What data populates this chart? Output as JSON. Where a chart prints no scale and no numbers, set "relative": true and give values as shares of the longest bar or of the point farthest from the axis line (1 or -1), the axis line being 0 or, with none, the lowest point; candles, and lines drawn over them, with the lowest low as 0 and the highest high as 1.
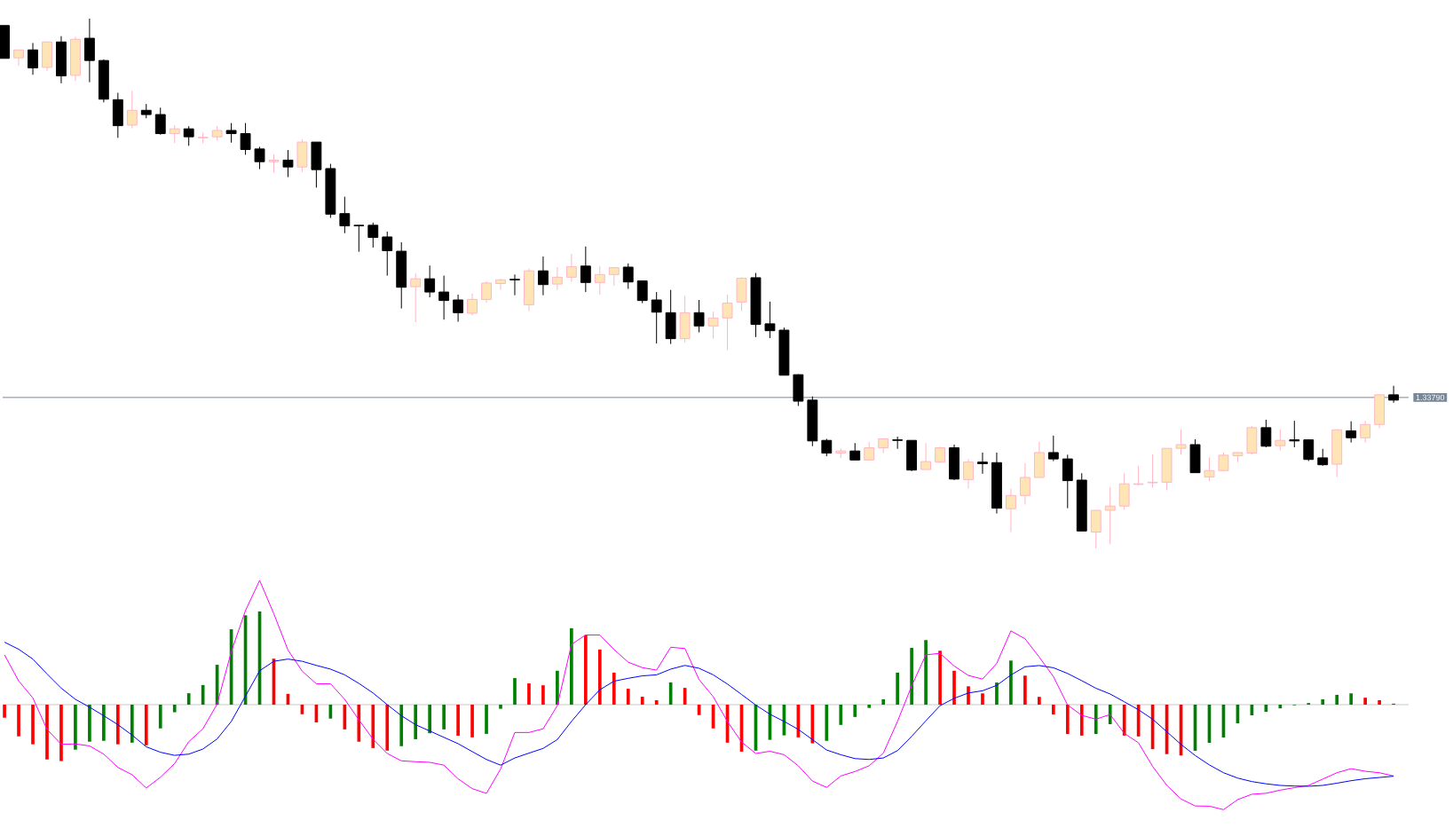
{
  "chart_data": [
    {
      "type": "candlestick",
      "relative": true,
      "categories": [
        null,
        null,
        null,
        null,
        null,
        null,
        null,
        null,
        null,
        null,
        null,
        null,
        null,
        null,
        null,
        null,
        null,
        null,
        null,
        null,
        null,
        null,
        null,
        null,
        null,
        null,
        null,
        null,
        null,
        null,
        null,
        null,
        null,
        null,
        null,
        null,
        null,
        null,
        null,
        null,
        null,
        null,
        null,
        null,
        null,
        null,
        null,
        null,
        null,
        null,
        null,
        null,
        null,
        null,
        null,
        null,
        null,
        null,
        null,
        null,
        null,
        null,
        null,
        null,
        null,
        null,
        null,
        null,
        null,
        null,
        null,
        null,
        null,
        null,
        null,
        null,
        null,
        null,
        null,
        null,
        null,
        null,
        null,
        null,
        null,
        null,
        null,
        null,
        null,
        null,
        null,
        null,
        null,
        null,
        null,
        null,
        null,
        null,
        null
      ],
      "ohlc": [
        [
          0.987,
          0.987,
          0.925,
          0.925
        ],
        [
          0.926,
          0.942,
          0.911,
          0.941
        ],
        [
          0.941,
          0.954,
          0.894,
          0.907
        ],
        [
          0.908,
          0.957,
          0.901,
          0.956
        ],
        [
          0.956,
          0.967,
          0.878,
          0.892
        ],
        [
          0.893,
          0.966,
          0.882,
          0.961
        ],
        [
          0.963,
          1.0,
          0.88,
          0.921
        ],
        [
          0.921,
          0.923,
          0.842,
          0.848
        ],
        [
          0.847,
          0.86,
          0.775,
          0.798
        ],
        [
          0.799,
          0.864,
          0.793,
          0.827
        ],
        [
          0.827,
          0.839,
          0.812,
          0.819
        ],
        [
          0.819,
          0.832,
          0.781,
          0.783
        ],
        [
          0.783,
          0.799,
          0.765,
          0.792
        ],
        [
          0.792,
          0.797,
          0.76,
          0.777
        ],
        [
          0.775,
          0.785,
          0.765,
          0.776
        ],
        [
          0.777,
          0.797,
          0.77,
          0.789
        ],
        [
          0.789,
          0.803,
          0.766,
          0.783
        ],
        [
          0.783,
          0.803,
          0.743,
          0.753
        ],
        [
          0.754,
          0.758,
          0.716,
          0.73
        ],
        [
          0.73,
          0.744,
          0.709,
          0.733
        ],
        [
          0.733,
          0.752,
          0.701,
          0.72
        ],
        [
          0.72,
          0.772,
          0.711,
          0.767
        ],
        [
          0.767,
          0.767,
          0.681,
          0.715
        ],
        [
          0.717,
          0.726,
          0.624,
          0.631
        ],
        [
          0.632,
          0.664,
          0.595,
          0.609
        ],
        [
          0.61,
          0.61,
          0.56,
          0.609
        ],
        [
          0.61,
          0.615,
          0.568,
          0.587
        ],
        [
          0.588,
          0.598,
          0.515,
          0.562
        ],
        [
          0.561,
          0.578,
          0.453,
          0.493
        ],
        [
          0.494,
          0.519,
          0.427,
          0.509
        ],
        [
          0.509,
          0.534,
          0.474,
          0.484
        ],
        [
          0.484,
          0.515,
          0.432,
          0.468
        ],
        [
          0.469,
          0.479,
          0.428,
          0.445
        ],
        [
          0.444,
          0.481,
          0.44,
          0.47
        ],
        [
          0.47,
          0.504,
          0.464,
          0.501
        ],
        [
          0.5,
          0.509,
          0.488,
          0.507
        ],
        [
          0.508,
          0.517,
          0.478,
          0.507
        ],
        [
          0.46,
          0.528,
          0.448,
          0.524
        ],
        [
          0.524,
          0.551,
          0.478,
          0.498
        ],
        [
          0.499,
          0.531,
          0.488,
          0.512
        ],
        [
          0.512,
          0.556,
          0.503,
          0.532
        ],
        [
          0.533,
          0.57,
          0.484,
          0.502
        ],
        [
          0.502,
          0.533,
          0.479,
          0.517
        ],
        [
          0.517,
          0.53,
          0.496,
          0.53
        ],
        [
          0.531,
          0.538,
          0.49,
          0.503
        ],
        [
          0.505,
          0.506,
          0.463,
          0.468
        ],
        [
          0.469,
          0.484,
          0.387,
          0.446
        ],
        [
          0.445,
          0.488,
          0.386,
          0.396
        ],
        [
          0.396,
          0.477,
          0.389,
          0.445
        ],
        [
          0.445,
          0.469,
          0.408,
          0.42
        ],
        [
          0.42,
          0.447,
          0.396,
          0.435
        ],
        [
          0.435,
          0.479,
          0.374,
          0.463
        ],
        [
          0.465,
          0.512,
          0.448,
          0.51
        ],
        [
          0.511,
          0.52,
          0.399,
          0.423
        ],
        [
          0.424,
          0.466,
          0.397,
          0.411
        ],
        [
          0.412,
          0.417,
          0.327,
          0.327
        ],
        [
          0.328,
          0.329,
          0.269,
          0.278
        ],
        [
          0.28,
          0.287,
          0.193,
          0.203
        ],
        [
          0.204,
          0.207,
          0.174,
          0.18
        ],
        [
          0.18,
          0.189,
          0.171,
          0.184
        ],
        [
          0.184,
          0.199,
          0.167,
          0.167
        ],
        [
          0.167,
          0.201,
          0.167,
          0.19
        ],
        [
          0.19,
          0.207,
          0.18,
          0.207
        ],
        [
          0.205,
          0.211,
          0.188,
          0.204
        ],
        [
          0.204,
          0.204,
          0.146,
          0.148
        ],
        [
          0.149,
          0.199,
          0.149,
          0.164
        ],
        [
          0.163,
          0.192,
          0.161,
          0.19
        ],
        [
          0.19,
          0.196,
          0.129,
          0.131
        ],
        [
          0.13,
          0.169,
          0.113,
          0.163
        ],
        [
          0.163,
          0.181,
          0.141,
          0.16
        ],
        [
          0.162,
          0.181,
          0.066,
          0.076
        ],
        [
          0.075,
          0.113,
          0.031,
          0.1
        ],
        [
          0.1,
          0.161,
          0.083,
          0.134
        ],
        [
          0.134,
          0.201,
          0.134,
          0.181
        ],
        [
          0.181,
          0.213,
          0.165,
          0.169
        ],
        [
          0.169,
          0.177,
          0.076,
          0.128
        ],
        [
          0.129,
          0.142,
          0.033,
          0.033
        ],
        [
          0.031,
          0.072,
          0,
          0.072
        ],
        [
          0.072,
          0.116,
          0.008,
          0.08
        ],
        [
          0.08,
          0.142,
          0.073,
          0.122
        ],
        [
          0.121,
          0.156,
          0.119,
          0.122
        ],
        [
          0.124,
          0.178,
          0.115,
          0.125
        ],
        [
          0.125,
          0.189,
          0.11,
          0.189
        ],
        [
          0.189,
          0.225,
          0.177,
          0.196
        ],
        [
          0.196,
          0.206,
          0.143,
          0.143
        ],
        [
          0.135,
          0.172,
          0.127,
          0.147
        ],
        [
          0.147,
          0.181,
          0.147,
          0.176
        ],
        [
          0.175,
          0.181,
          0.163,
          0.181
        ],
        [
          0.18,
          0.231,
          0.177,
          0.228
        ],
        [
          0.228,
          0.243,
          0.191,
          0.193
        ],
        [
          0.194,
          0.225,
          0.185,
          0.204
        ],
        [
          0.205,
          0.241,
          0.191,
          0.203
        ],
        [
          0.205,
          0.206,
          0.165,
          0.168
        ],
        [
          0.171,
          0.188,
          0.156,
          0.158
        ],
        [
          0.159,
          0.225,
          0.135,
          0.224
        ],
        [
          0.222,
          0.24,
          0.2,
          0.209
        ],
        [
          0.209,
          0.241,
          0.2,
          0.234
        ],
        [
          0.234,
          0.291,
          0.227,
          0.29
        ],
        [
          0.29,
          0.307,
          0.275,
          0.28
        ]
      ],
      "colors": [
        "#000000",
        "#ffe4b5",
        "#000000",
        "#ffe4b5",
        "#000000",
        "#ffe4b5",
        "#000000",
        "#000000",
        "#000000",
        "#ffe4b5",
        "#000000",
        "#000000",
        "#ffe4b5",
        "#000000",
        "#ffe4b5",
        "#ffe4b5",
        "#000000",
        "#000000",
        "#000000",
        "#ffe4b5",
        "#000000",
        "#ffe4b5",
        "#000000",
        "#000000",
        "#000000",
        "#000000",
        "#000000",
        "#000000",
        "#000000",
        "#ffe4b5",
        "#000000",
        "#000000",
        "#000000",
        "#ffe4b5",
        "#ffe4b5",
        "#ffe4b5",
        "#000000",
        "#ffe4b5",
        "#000000",
        "#ffe4b5",
        "#ffe4b5",
        "#000000",
        "#ffe4b5",
        "#ffe4b5",
        "#000000",
        "#000000",
        "#000000",
        "#000000",
        "#ffe4b5",
        "#000000",
        "#ffe4b5",
        "#ffe4b5",
        "#ffe4b5",
        "#000000",
        "#000000",
        "#000000",
        "#000000",
        "#000000",
        "#000000",
        "#ffe4b5",
        "#000000",
        "#ffe4b5",
        "#ffe4b5",
        "#000000",
        "#000000",
        "#ffe4b5",
        "#ffe4b5",
        "#000000",
        "#ffe4b5",
        "#000000",
        "#000000",
        "#ffe4b5",
        "#ffe4b5",
        "#ffe4b5",
        "#000000",
        "#000000",
        "#000000",
        "#ffe4b5",
        "#ffe4b5",
        "#ffe4b5",
        "#ffe4b5",
        "#ffe4b5",
        "#ffe4b5",
        "#ffe4b5",
        "#000000",
        "#ffe4b5",
        "#ffe4b5",
        "#ffe4b5",
        "#ffe4b5",
        "#000000",
        "#ffe4b5",
        "#000000",
        "#000000",
        "#000000",
        "#ffe4b5",
        "#000000",
        "#ffe4b5",
        "#ffe4b5",
        "#000000"
      ],
      "ref_lines": [
        {
          "axis": "y",
          "value": 0.285,
          "color": "#778899"
        }
      ],
      "annotations": [
        "1.33790"
      ]
    },
    {
      "type": "bar",
      "relative": true,
      "categories": [
        null,
        null,
        null,
        null,
        null,
        null,
        null,
        null,
        null,
        null,
        null,
        null,
        null,
        null,
        null,
        null,
        null,
        null,
        null,
        null,
        null,
        null,
        null,
        null,
        null,
        null,
        null,
        null,
        null,
        null,
        null,
        null,
        null,
        null,
        null,
        null,
        null,
        null,
        null,
        null,
        null,
        null,
        null,
        null,
        null,
        null,
        null,
        null,
        null,
        null,
        null,
        null,
        null,
        null,
        null,
        null,
        null,
        null,
        null,
        null,
        null,
        null,
        null,
        null,
        null,
        null,
        null,
        null,
        null,
        null,
        null,
        null,
        null,
        null,
        null,
        null,
        null,
        null,
        null,
        null,
        null,
        null,
        null,
        null,
        null,
        null,
        null,
        null,
        null,
        null,
        null,
        null,
        null,
        null,
        null,
        null,
        null,
        null,
        null
      ],
      "series": [
        {
          "values": [
            -0.105,
            -0.255,
            -0.319,
            -0.441,
            -0.454,
            -0.362,
            -0.298,
            -0.291,
            -0.319,
            -0.306,
            -0.327,
            -0.191,
            -0.061,
            0.092,
            0.158,
            0.321,
            0.607,
            0.719,
            0.75,
            0.37,
            0.087,
            -0.077,
            -0.143,
            -0.112,
            -0.199,
            -0.298,
            -0.349,
            -0.37,
            -0.334,
            -0.278,
            -0.23,
            -0.199,
            -0.25,
            -0.263,
            -0.235,
            -0.033,
            0.214,
            0.171,
            0.156,
            0.273,
            0.615,
            0.559,
            0.444,
            0.258,
            0.128,
            0.064,
            0.036,
            0.179,
            0.135,
            -0.084,
            -0.191,
            -0.306,
            -0.378,
            -0.37,
            -0.283,
            -0.247,
            -0.263,
            -0.311,
            -0.291,
            -0.163,
            -0.099,
            -0.026,
            0.043,
            0.258,
            0.457,
            0.52,
            0.434,
            0.273,
            0.148,
            0.091,
            0.178,
            0.355,
            0.234,
            0.063,
            -0.079,
            -0.236,
            -0.249,
            -0.236,
            -0.157,
            -0.249,
            -0.256,
            -0.358,
            -0.398,
            -0.409,
            -0.371,
            -0.307,
            -0.264,
            -0.15,
            -0.086,
            -0.058,
            -0.03,
            -0.005,
            0.013,
            0.043,
            0.079,
            0.091,
            0.056,
            0.036,
            0.008
          ],
          "colors": [
            "#ff0000",
            "#ff0000",
            "#ff0000",
            "#ff0000",
            "#ff0000",
            "#008000",
            "#008000",
            "#008000",
            "#ff0000",
            "#008000",
            "#ff0000",
            "#008000",
            "#008000",
            "#008000",
            "#008000",
            "#008000",
            "#008000",
            "#008000",
            "#008000",
            "#ff0000",
            "#ff0000",
            "#ff0000",
            "#ff0000",
            "#008000",
            "#ff0000",
            "#ff0000",
            "#ff0000",
            "#ff0000",
            "#008000",
            "#008000",
            "#008000",
            "#008000",
            "#ff0000",
            "#ff0000",
            "#008000",
            "#008000",
            "#008000",
            "#ff0000",
            "#ff0000",
            "#008000",
            "#008000",
            "#ff0000",
            "#ff0000",
            "#ff0000",
            "#ff0000",
            "#ff0000",
            "#ff0000",
            "#008000",
            "#ff0000",
            "#ff0000",
            "#ff0000",
            "#ff0000",
            "#ff0000",
            "#008000",
            "#008000",
            "#008000",
            "#ff0000",
            "#ff0000",
            "#008000",
            "#008000",
            "#008000",
            "#008000",
            "#008000",
            "#008000",
            "#008000",
            "#008000",
            "#ff0000",
            "#ff0000",
            "#ff0000",
            "#ff0000",
            "#008000",
            "#008000",
            "#ff0000",
            "#ff0000",
            "#ff0000",
            "#ff0000",
            "#ff0000",
            "#008000",
            "#008000",
            "#ff0000",
            "#ff0000",
            "#ff0000",
            "#ff0000",
            "#ff0000",
            "#008000",
            "#008000",
            "#008000",
            "#008000",
            "#008000",
            "#008000",
            "#008000",
            "#008000",
            "#008000",
            "#008000",
            "#008000",
            "#008000",
            "#ff0000",
            "#ff0000",
            "#ff0000"
          ]
        },
        {
          "type": "line",
          "color": "#ff00ff",
          "values": [
            0.401,
            0.191,
            0.054,
            -0.199,
            -0.319,
            -0.316,
            -0.332,
            -0.398,
            -0.505,
            -0.564,
            -0.671,
            -0.584,
            -0.474,
            -0.298,
            -0.194,
            0.005,
            0.426,
            0.758,
            1.0,
            0.732,
            0.439,
            0.27,
            0.168,
            0.168,
            0.043,
            -0.122,
            -0.278,
            -0.393,
            -0.452,
            -0.459,
            -0.464,
            -0.487,
            -0.597,
            -0.676,
            -0.714,
            -0.518,
            -0.224,
            -0.224,
            -0.194,
            -0.008,
            0.485,
            0.561,
            0.561,
            0.444,
            0.342,
            0.298,
            0.278,
            0.462,
            0.452,
            0.202,
            0.064,
            -0.135,
            -0.301,
            -0.393,
            -0.375,
            -0.403,
            -0.492,
            -0.615,
            -0.666,
            -0.574,
            -0.538,
            -0.492,
            -0.39,
            -0.135,
            0.151,
            0.401,
            0.413,
            0.311,
            0.235,
            0.206,
            0.332,
            0.594,
            0.53,
            0.383,
            0.226,
            -0.003,
            -0.086,
            -0.117,
            -0.079,
            -0.231,
            -0.307,
            -0.497,
            -0.65,
            -0.759,
            -0.815,
            -0.817,
            -0.845,
            -0.764,
            -0.721,
            -0.713,
            -0.688,
            -0.668,
            -0.65,
            -0.599,
            -0.548,
            -0.515,
            -0.536,
            -0.548,
            -0.574
          ]
        },
        {
          "type": "line",
          "color": "#0000ff",
          "values": [
            0.503,
            0.446,
            0.367,
            0.247,
            0.133,
            0.043,
            -0.02,
            -0.089,
            -0.161,
            -0.245,
            -0.339,
            -0.383,
            -0.408,
            -0.398,
            -0.357,
            -0.276,
            -0.135,
            0.069,
            0.273,
            0.349,
            0.367,
            0.349,
            0.316,
            0.286,
            0.24,
            0.171,
            0.094,
            0,
            -0.089,
            -0.161,
            -0.212,
            -0.263,
            -0.314,
            -0.378,
            -0.441,
            -0.487,
            -0.429,
            -0.39,
            -0.352,
            -0.281,
            -0.135,
            0,
            0.12,
            0.189,
            0.212,
            0.232,
            0.24,
            0.286,
            0.316,
            0.293,
            0.24,
            0.166,
            0.082,
            -0.003,
            -0.077,
            -0.135,
            -0.199,
            -0.281,
            -0.365,
            -0.403,
            -0.434,
            -0.441,
            -0.429,
            -0.37,
            -0.255,
            -0.13,
            -0.008,
            0.051,
            0.094,
            0.112,
            0.155,
            0.239,
            0.305,
            0.315,
            0.297,
            0.251,
            0.193,
            0.132,
            0.086,
            0.023,
            -0.041,
            -0.117,
            -0.218,
            -0.32,
            -0.409,
            -0.485,
            -0.548,
            -0.591,
            -0.619,
            -0.637,
            -0.65,
            -0.655,
            -0.657,
            -0.65,
            -0.632,
            -0.612,
            -0.596,
            -0.586,
            -0.576
          ]
        }
      ]
    }
  ]
}
